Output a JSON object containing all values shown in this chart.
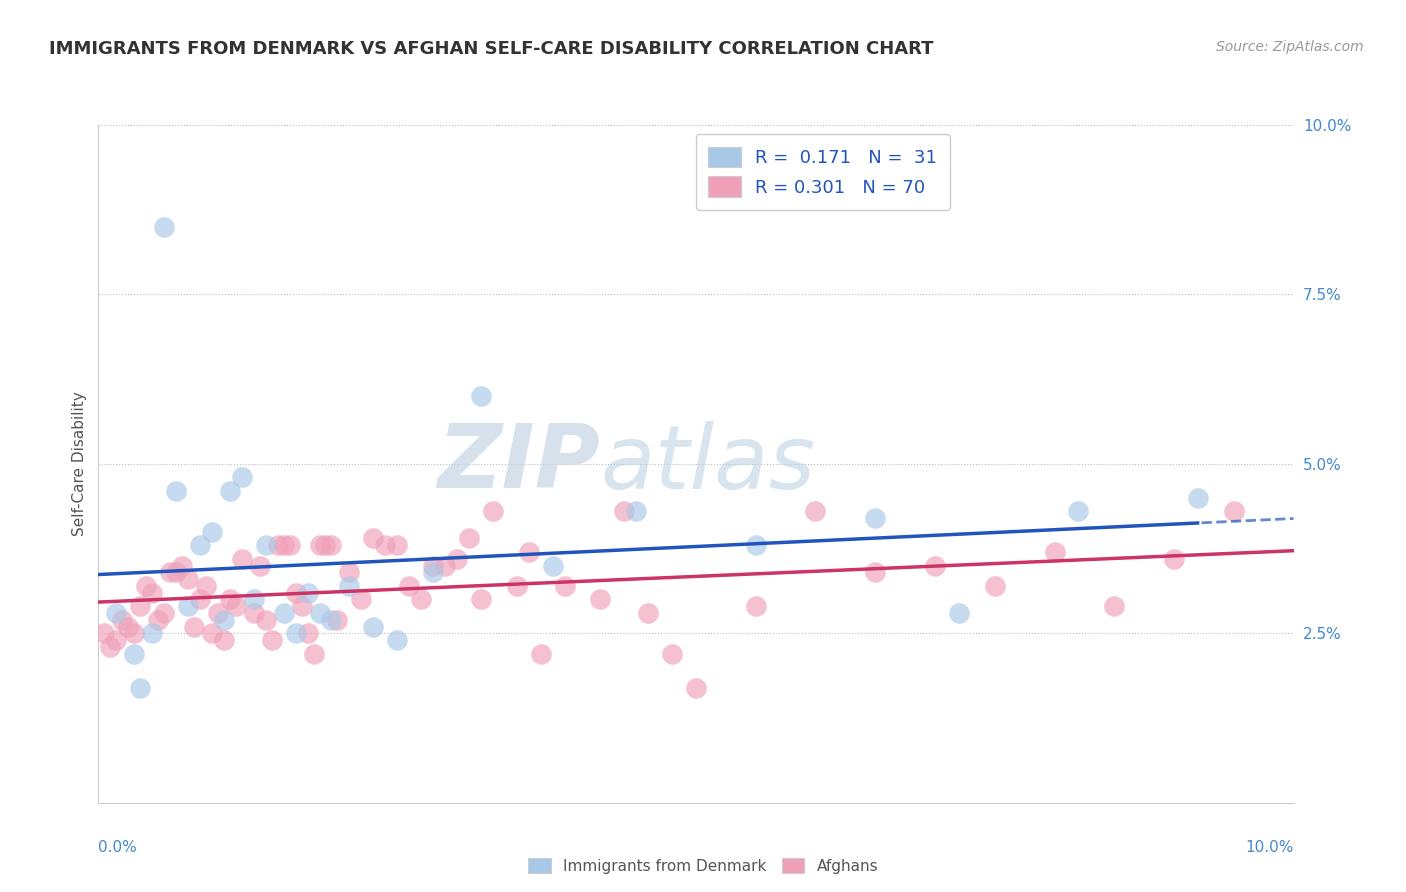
{
  "title": "IMMIGRANTS FROM DENMARK VS AFGHAN SELF-CARE DISABILITY CORRELATION CHART",
  "source": "Source: ZipAtlas.com",
  "ylabel": "Self-Care Disability",
  "right_yticks": [
    2.5,
    5.0,
    7.5,
    10.0
  ],
  "right_ytick_labels": [
    "2.5%",
    "5.0%",
    "7.5%",
    "10.0%"
  ],
  "blue_color": "#a8c8e8",
  "pink_color": "#f0a0b8",
  "trend_blue": "#2255bb",
  "trend_pink": "#cc3366",
  "denmark_x": [
    0.15,
    0.3,
    0.35,
    0.45,
    0.55,
    0.65,
    0.75,
    0.85,
    0.95,
    1.05,
    1.1,
    1.2,
    1.3,
    1.4,
    1.55,
    1.65,
    1.75,
    1.85,
    1.95,
    2.1,
    2.3,
    2.5,
    2.8,
    3.2,
    3.8,
    4.5,
    5.5,
    6.5,
    7.2,
    8.2,
    9.2
  ],
  "denmark_y": [
    2.8,
    2.2,
    1.7,
    2.5,
    8.5,
    4.6,
    2.9,
    3.8,
    4.0,
    2.7,
    4.6,
    4.8,
    3.0,
    3.8,
    2.8,
    2.5,
    3.1,
    2.8,
    2.7,
    3.2,
    2.6,
    2.4,
    3.4,
    6.0,
    3.5,
    4.3,
    3.8,
    4.2,
    2.8,
    4.3,
    4.5
  ],
  "afghan_x": [
    0.05,
    0.1,
    0.15,
    0.2,
    0.25,
    0.3,
    0.35,
    0.4,
    0.45,
    0.5,
    0.55,
    0.6,
    0.65,
    0.7,
    0.75,
    0.8,
    0.85,
    0.9,
    0.95,
    1.0,
    1.05,
    1.1,
    1.15,
    1.2,
    1.3,
    1.35,
    1.4,
    1.45,
    1.5,
    1.55,
    1.6,
    1.65,
    1.7,
    1.75,
    1.8,
    1.85,
    1.9,
    1.95,
    2.0,
    2.1,
    2.2,
    2.3,
    2.4,
    2.5,
    2.6,
    2.7,
    2.8,
    2.9,
    3.0,
    3.1,
    3.2,
    3.3,
    3.5,
    3.6,
    3.7,
    3.9,
    4.2,
    4.4,
    4.6,
    4.8,
    5.0,
    5.5,
    6.0,
    6.5,
    7.0,
    7.5,
    8.0,
    8.5,
    9.0,
    9.5
  ],
  "afghan_y": [
    2.5,
    2.3,
    2.4,
    2.7,
    2.6,
    2.5,
    2.9,
    3.2,
    3.1,
    2.7,
    2.8,
    3.4,
    3.4,
    3.5,
    3.3,
    2.6,
    3.0,
    3.2,
    2.5,
    2.8,
    2.4,
    3.0,
    2.9,
    3.6,
    2.8,
    3.5,
    2.7,
    2.4,
    3.8,
    3.8,
    3.8,
    3.1,
    2.9,
    2.5,
    2.2,
    3.8,
    3.8,
    3.8,
    2.7,
    3.4,
    3.0,
    3.9,
    3.8,
    3.8,
    3.2,
    3.0,
    3.5,
    3.5,
    3.6,
    3.9,
    3.0,
    4.3,
    3.2,
    3.7,
    2.2,
    3.2,
    3.0,
    4.3,
    2.8,
    2.2,
    1.7,
    2.9,
    4.3,
    3.4,
    3.5,
    3.2,
    3.7,
    2.9,
    3.6,
    4.3
  ]
}
